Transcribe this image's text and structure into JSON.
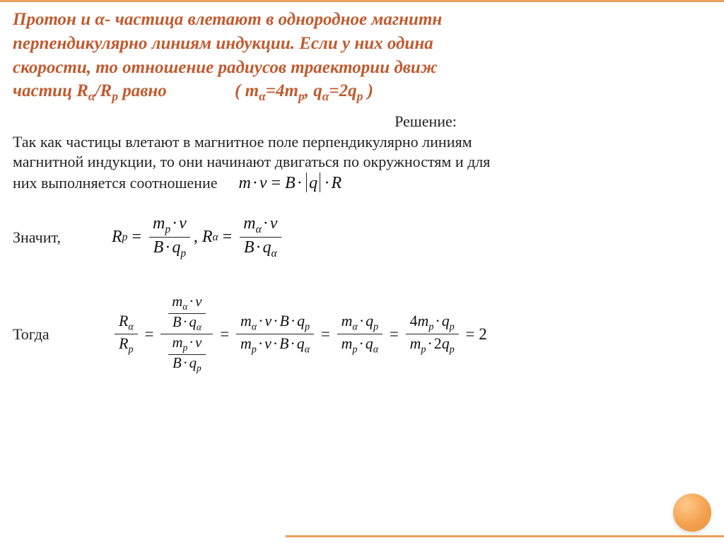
{
  "colors": {
    "accent": "#c15a2e",
    "accent_light": "#e8a05c",
    "text": "#222222",
    "background": "#ffffff",
    "circle_gradient": [
      "#ffc98a",
      "#f3a14f",
      "#e8903a"
    ]
  },
  "typography": {
    "problem_fontsize": 25,
    "body_fontsize": 22,
    "math_fontsize": 24,
    "problem_style": "bold italic",
    "font_family": "Georgia / Times New Roman serif"
  },
  "problem": {
    "line1": "Протон и α- частица влетают в однородное магнитн",
    "line2": "перпендикулярно линиям индукции. Если у них одина",
    "line3": "скорости, то отношение радиусов траектории движ",
    "line4_a": "частиц R",
    "line4_sub1": "α",
    "line4_b": "/R",
    "line4_sub2": "p",
    "line4_c": " равно",
    "given_a": "( m",
    "given_sub1": "α",
    "given_b": "=4m",
    "given_sub2": "p",
    "given_c": ", q",
    "given_sub3": "α",
    "given_d": "=2q",
    "given_sub4": "p",
    "given_e": " )"
  },
  "solution": {
    "title": "Решение:",
    "para1": "Так как частицы влетают в магнитное поле перпендикулярно линиям",
    "para2_a": " магнитной индукции, то они начинают двигаться по окружностям и для",
    "para3_a": "них выполняется соотношение",
    "lead_znachit": "Значит,",
    "lead_togda": "Тогда"
  },
  "equations": {
    "balance": {
      "lhs_m": "m",
      "lhs_v": "v",
      "rhs_B": "B",
      "rhs_q": "q",
      "rhs_R": "R",
      "operator": "·",
      "equals": "="
    },
    "Rp": {
      "sym": "R",
      "sub": "p",
      "num_m": "m",
      "num_msub": "p",
      "num_v": "v",
      "den_B": "B",
      "den_q": "q",
      "den_qsub": "p"
    },
    "Ra": {
      "sym": "R",
      "sub": "α",
      "num_m": "m",
      "num_msub": "α",
      "num_v": "v",
      "den_B": "B",
      "den_q": "q",
      "den_qsub": "α"
    },
    "chain": {
      "ratio_num": "R",
      "ratio_num_sub": "α",
      "ratio_den": "R",
      "ratio_den_sub": "p",
      "step2_num": "m_α · v · B · q_p",
      "step2_den": "m_p · v · B · q_α",
      "step3_num": "m_α · q_p",
      "step3_den": "m_p · q_α",
      "step4_num": "4m_p · q_p",
      "step4_den": "m_p · 2q_p",
      "result": "2"
    }
  }
}
